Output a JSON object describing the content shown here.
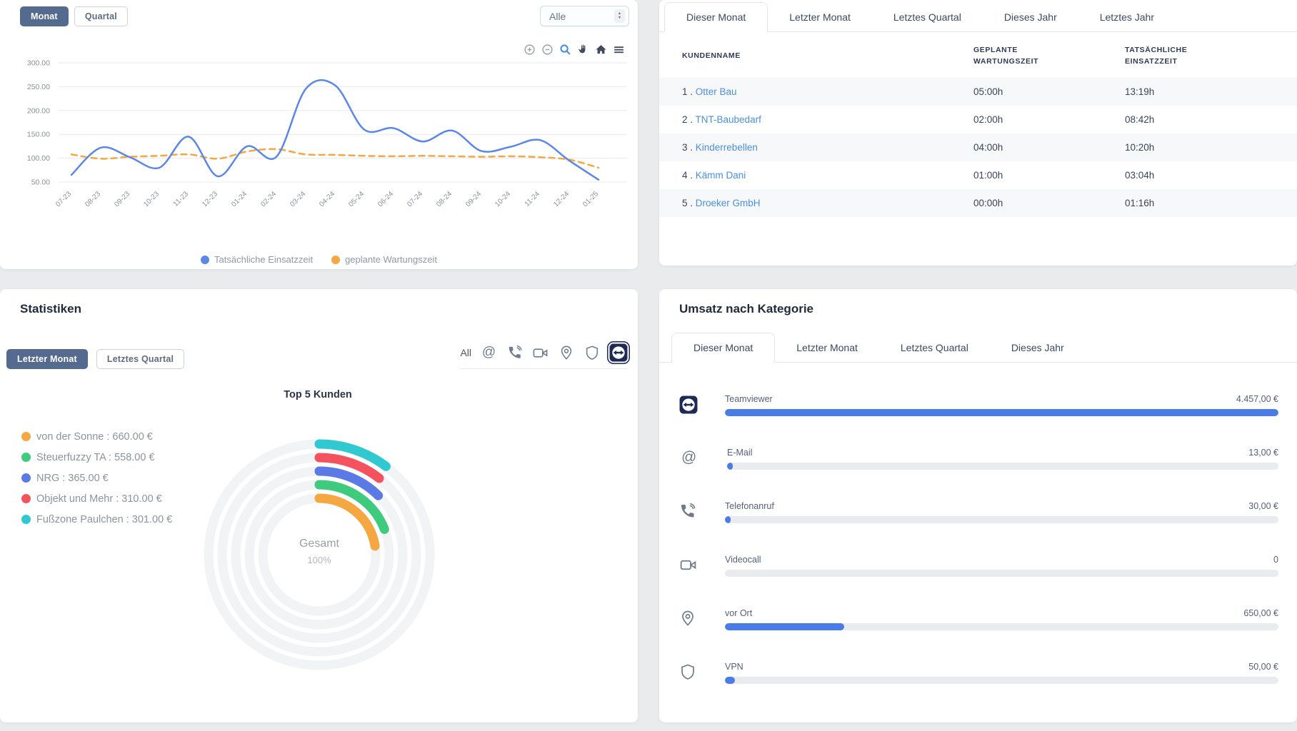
{
  "maintenance_panel": {
    "period_toggle": {
      "options": [
        "Monat",
        "Quartal"
      ],
      "active": "Monat"
    },
    "filter_select": {
      "value": "Alle"
    },
    "modebar_icons": [
      "zoom-in",
      "zoom-out",
      "zoom",
      "pan",
      "home",
      "menu"
    ],
    "chart_data": {
      "type": "line",
      "x": [
        "07-23",
        "08-23",
        "09-23",
        "10-23",
        "11-23",
        "12-23",
        "01-24",
        "02-24",
        "03-24",
        "04-24",
        "05-24",
        "06-24",
        "07-24",
        "08-24",
        "09-24",
        "10-24",
        "11-24",
        "12-24",
        "01-25"
      ],
      "series": [
        {
          "name": "Tatsächliche Einsatzzeit",
          "color": "#5b87e8",
          "style": "solid",
          "values": [
            65,
            122,
            102,
            80,
            145,
            62,
            125,
            103,
            245,
            253,
            160,
            163,
            135,
            158,
            115,
            124,
            138,
            95,
            55
          ]
        },
        {
          "name": "geplante Wartungszeit",
          "color": "#f5a742",
          "style": "dashed",
          "values": [
            108,
            99,
            103,
            105,
            108,
            99,
            114,
            119,
            108,
            107,
            105,
            104,
            105,
            104,
            103,
            104,
            102,
            97,
            80
          ]
        }
      ],
      "ylim": [
        50,
        300
      ],
      "yticks": [
        "300.00",
        "250.00",
        "200.00",
        "150.00",
        "100.00",
        "50.00"
      ],
      "grid": true,
      "legend_position": "bottom"
    }
  },
  "customers_panel": {
    "tabs": [
      "Dieser Monat",
      "Letzter Monat",
      "Letztes Quartal",
      "Dieses Jahr",
      "Letztes Jahr"
    ],
    "active_tab": "Dieser Monat",
    "table": {
      "columns": [
        "KUNDENNAME",
        "GEPLANTE WARTUNGSZEIT",
        "TATSÄCHLICHE EINSATZZEIT"
      ],
      "rows": [
        {
          "rank": "1",
          "sep": " . ",
          "name": "Otter Bau",
          "planned": "05:00h",
          "actual": "13:19h"
        },
        {
          "rank": "2",
          "sep": " . ",
          "name": "TNT-Baubedarf",
          "planned": "02:00h",
          "actual": "08:42h"
        },
        {
          "rank": "3",
          "sep": " . ",
          "name": "Kinderrebellen",
          "planned": "04:00h",
          "actual": "10:20h"
        },
        {
          "rank": "4",
          "sep": " . ",
          "name": "Kämm Dani",
          "planned": "01:00h",
          "actual": "03:04h"
        },
        {
          "rank": "5",
          "sep": " . ",
          "name": "Droeker GmbH",
          "planned": "00:00h",
          "actual": "01:16h"
        }
      ]
    }
  },
  "statistics_panel": {
    "title": "Statistiken",
    "period_toggle": {
      "options": [
        "Letzter Monat",
        "Letztes Quartal"
      ],
      "active": "Letzter Monat"
    },
    "filter_all_label": "All",
    "filter_icons": [
      "email",
      "phone",
      "video",
      "location",
      "shield",
      "teamviewer"
    ],
    "active_filter": "teamviewer",
    "chart_title": "Top 5 Kunden",
    "chart_data": {
      "type": "radial-bar",
      "entries": [
        {
          "label": "von der Sonne",
          "value": 660.0,
          "display": "von der Sonne : 660.00 €",
          "color": "#f5a742"
        },
        {
          "label": "Steuerfuzzy TA",
          "value": 558.0,
          "display": "Steuerfuzzy TA : 558.00 €",
          "color": "#3ecb7e"
        },
        {
          "label": "NRG",
          "value": 365.0,
          "display": "NRG : 365.00 €",
          "color": "#5b7ae5"
        },
        {
          "label": "Objekt und Mehr",
          "value": 310.0,
          "display": "Objekt und Mehr : 310.00 €",
          "color": "#f4525e"
        },
        {
          "label": "Fußzone Paulchen",
          "value": 301.0,
          "display": "Fußzone Paulchen : 301.00 €",
          "color": "#30c9cf"
        }
      ],
      "center_label": "Gesamt",
      "center_value": "100%",
      "max_sweep_degrees": 270,
      "track_color": "#f2f3f5"
    }
  },
  "revenue_panel": {
    "title": "Umsatz nach Kategorie",
    "tabs": [
      "Dieser Monat",
      "Letzter Monat",
      "Letztes Quartal",
      "Dieses Jahr"
    ],
    "active_tab": "Dieser Monat",
    "chart_data": {
      "type": "bar",
      "categories": [
        "Teamviewer",
        "E-Mail",
        "Telefonanruf",
        "Videocall",
        "vor Ort",
        "VPN"
      ],
      "values": [
        4457.0,
        13.0,
        30.0,
        0,
        650.0,
        50.0
      ],
      "value_labels": [
        "4.457,00 €",
        "13,00 €",
        "30,00 €",
        "0",
        "650,00 €",
        "50,00 €"
      ],
      "icons": [
        "teamviewer",
        "email",
        "phone",
        "video",
        "location",
        "shield"
      ],
      "bar_percents": [
        100,
        0.7,
        1.0,
        0,
        21.5,
        1.8
      ],
      "bar_color": "#4a7ce8"
    }
  }
}
